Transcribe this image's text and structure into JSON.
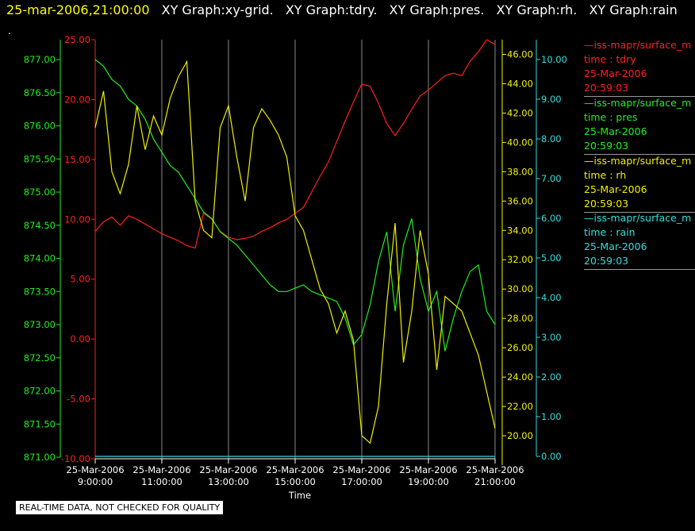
{
  "header": {
    "timestamp": "25-mar-2006,21:00:00",
    "graphs": [
      "XY Graph:xy-grid.",
      "XY Graph:tdry.",
      "XY Graph:pres.",
      "XY Graph:rh.",
      "XY Graph:rain"
    ],
    "dot": "."
  },
  "disclaimer": "REAL-TIME DATA, NOT CHECKED FOR QUALITY",
  "legend": [
    {
      "title": "iss-mapr/surface_m",
      "var": "time : tdry",
      "date": "25-Mar-2006",
      "time": "20:59:03",
      "color": "#ff2020"
    },
    {
      "title": "iss-mapr/surface_m",
      "var": "time : pres",
      "date": "25-Mar-2006",
      "time": "20:59:03",
      "color": "#22ee22"
    },
    {
      "title": "iss-mapr/surface_m",
      "var": "time : rh",
      "date": "25-Mar-2006",
      "time": "20:59:03",
      "color": "#f0f000"
    },
    {
      "title": "iss-mapr/surface_m",
      "var": "time : rain",
      "date": "25-Mar-2006",
      "time": "20:59:03",
      "color": "#33dddd"
    }
  ],
  "chart_data": {
    "type": "line",
    "xlabel": "Time",
    "x_ticks": [
      {
        "date": "25-Mar-2006",
        "time": "9:00:00",
        "hour": 9
      },
      {
        "date": "25-Mar-2006",
        "time": "11:00:00",
        "hour": 11
      },
      {
        "date": "25-Mar-2006",
        "time": "13:00:00",
        "hour": 13
      },
      {
        "date": "25-Mar-2006",
        "time": "15:00:00",
        "hour": 15
      },
      {
        "date": "25-Mar-2006",
        "time": "17:00:00",
        "hour": 17
      },
      {
        "date": "25-Mar-2006",
        "time": "19:00:00",
        "hour": 19
      },
      {
        "date": "25-Mar-2006",
        "time": "21:00:00",
        "hour": 21
      }
    ],
    "xlim": [
      9,
      21
    ],
    "grid": "vertical",
    "axes": {
      "tdry": {
        "min": -10,
        "max": 25,
        "ticks": [
          "-10.00",
          "-5.00",
          "0.00",
          "5.00",
          "10.00",
          "15.00",
          "20.00",
          "25.00"
        ],
        "color": "#ff2020"
      },
      "pres": {
        "min": 871,
        "max": 877.3,
        "ticks": [
          "871.00",
          "871.50",
          "872.00",
          "872.50",
          "873.00",
          "873.50",
          "874.00",
          "874.50",
          "875.00",
          "875.50",
          "876.00",
          "876.50",
          "877.00"
        ],
        "color": "#22ee22"
      },
      "rh": {
        "min": 18,
        "max": 47,
        "ticks": [
          "20.00",
          "22.00",
          "24.00",
          "26.00",
          "28.00",
          "30.00",
          "32.00",
          "34.00",
          "36.00",
          "38.00",
          "40.00",
          "42.00",
          "44.00",
          "46.00"
        ],
        "color": "#f0f000"
      },
      "rain": {
        "min": 0,
        "max": 10.5,
        "ticks": [
          "0.00",
          "1.00",
          "2.00",
          "3.00",
          "4.00",
          "5.00",
          "6.00",
          "7.00",
          "8.00",
          "9.00",
          "10.00"
        ],
        "color": "#33dddd"
      }
    },
    "series": [
      {
        "name": "tdry",
        "axis": "tdry",
        "color": "#ff2020",
        "x": [
          9.0,
          9.25,
          9.5,
          9.75,
          10.0,
          10.25,
          10.5,
          10.75,
          11.0,
          11.25,
          11.5,
          11.75,
          12.0,
          12.25,
          12.5,
          12.75,
          13.0,
          13.25,
          13.5,
          13.75,
          14.0,
          14.25,
          14.5,
          14.75,
          15.0,
          15.25,
          15.5,
          15.75,
          16.0,
          16.25,
          16.5,
          16.75,
          17.0,
          17.25,
          17.5,
          17.75,
          18.0,
          18.25,
          18.5,
          18.75,
          19.0,
          19.25,
          19.5,
          19.75,
          20.0,
          20.25,
          20.5,
          20.75,
          21.0
        ],
        "y": [
          9.0,
          9.8,
          10.2,
          9.5,
          10.3,
          10.0,
          9.6,
          9.2,
          8.8,
          8.5,
          8.2,
          7.8,
          7.6,
          10.5,
          10.0,
          9.0,
          8.5,
          8.3,
          8.4,
          8.6,
          9.0,
          9.3,
          9.7,
          10.0,
          10.5,
          11.0,
          12.3,
          13.6,
          14.8,
          16.5,
          18.2,
          19.8,
          21.3,
          21.1,
          19.7,
          18.0,
          17.0,
          18.0,
          19.2,
          20.3,
          20.8,
          21.4,
          22.0,
          22.2,
          22.0,
          23.2,
          24.0,
          25.0,
          24.6
        ]
      },
      {
        "name": "pres",
        "axis": "pres",
        "color": "#22ee22",
        "x": [
          9.0,
          9.25,
          9.5,
          9.75,
          10.0,
          10.25,
          10.5,
          10.75,
          11.0,
          11.25,
          11.5,
          11.75,
          12.0,
          12.25,
          12.5,
          12.75,
          13.0,
          13.25,
          13.5,
          13.75,
          14.0,
          14.25,
          14.5,
          14.75,
          15.0,
          15.25,
          15.5,
          15.75,
          16.0,
          16.25,
          16.5,
          16.75,
          17.0,
          17.25,
          17.5,
          17.75,
          18.0,
          18.25,
          18.5,
          18.75,
          19.0,
          19.25,
          19.5,
          19.75,
          20.0,
          20.25,
          20.5,
          20.75,
          21.0
        ],
        "y": [
          877.0,
          876.9,
          876.7,
          876.6,
          876.4,
          876.3,
          876.1,
          875.8,
          875.6,
          875.4,
          875.3,
          875.1,
          874.9,
          874.7,
          874.6,
          874.4,
          874.3,
          874.2,
          874.05,
          873.9,
          873.75,
          873.6,
          873.5,
          873.5,
          873.55,
          873.6,
          873.5,
          873.45,
          873.4,
          873.35,
          873.1,
          872.7,
          872.85,
          873.3,
          873.95,
          874.4,
          873.2,
          874.2,
          874.6,
          873.7,
          873.2,
          873.5,
          872.6,
          873.1,
          873.5,
          873.8,
          873.9,
          873.2,
          873.0
        ]
      }
    ],
    "rh_series": {
      "name": "rh",
      "axis": "rh",
      "color": "#f0f000",
      "x": [
        9.0,
        9.25,
        9.5,
        9.75,
        10.0,
        10.25,
        10.5,
        10.75,
        11.0,
        11.25,
        11.5,
        11.75,
        12.0,
        12.25,
        12.5,
        12.75,
        13.0,
        13.25,
        13.5,
        13.75,
        14.0,
        14.25,
        14.5,
        14.75,
        15.0,
        15.25,
        15.5,
        15.75,
        16.0,
        16.25,
        16.5,
        16.75,
        17.0,
        17.25,
        17.5,
        17.75,
        18.0,
        18.25,
        18.5,
        18.75,
        19.0,
        19.25,
        19.5,
        19.75,
        20.0,
        20.25,
        20.5,
        20.75,
        21.0
      ],
      "y": [
        41.0,
        43.5,
        38.0,
        36.5,
        38.5,
        42.5,
        39.5,
        41.8,
        40.5,
        43.0,
        44.5,
        45.5,
        36.0,
        34.0,
        33.5,
        41.0,
        42.5,
        39.0,
        36.0,
        41.0,
        42.3,
        41.5,
        40.5,
        39.0,
        35.0,
        34.0,
        32.0,
        30.0,
        29.0,
        27.0,
        28.5,
        26.5,
        20.0,
        19.5,
        22.0,
        29.0,
        34.5,
        25.0,
        28.5,
        34.0,
        31.0,
        24.5,
        29.5,
        29.0,
        28.5,
        27.0,
        25.5,
        23.0,
        20.5
      ]
    },
    "rain_series": {
      "name": "rain",
      "axis": "rain",
      "color": "#33dddd",
      "x": [
        9.0,
        21.0
      ],
      "y": [
        0.0,
        0.0
      ]
    }
  }
}
